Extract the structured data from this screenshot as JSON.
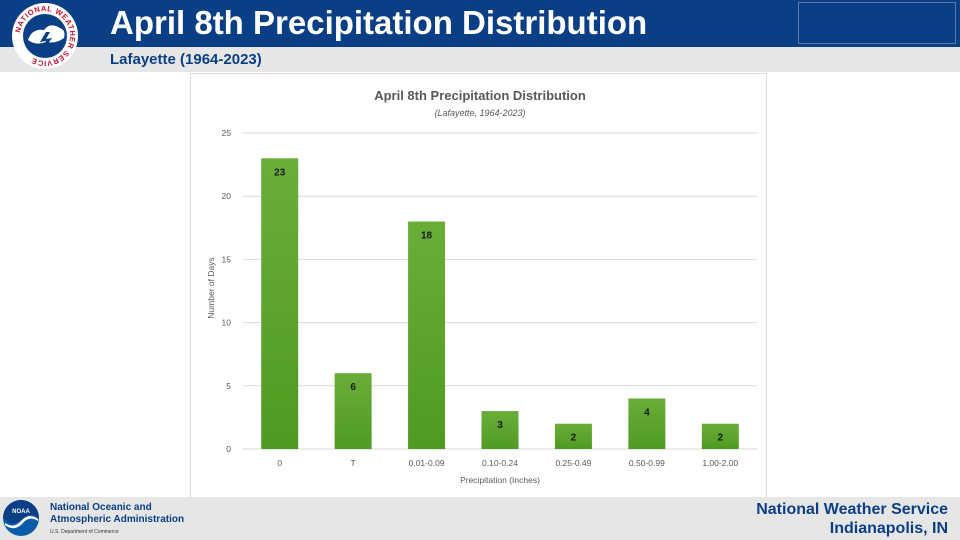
{
  "header": {
    "title": "April 8th Precipitation Distribution",
    "subtitle": "Lafayette (1964-2023)",
    "logo_text": "NATIONAL WEATHER SERVICE"
  },
  "chart_data": {
    "type": "bar",
    "title": "April 8th Precipitation Distribution",
    "subtitle": "(Lafayette, 1964-2023)",
    "xlabel": "Precipitation (Inches)",
    "ylabel": "Number of Days",
    "categories": [
      "0",
      "T",
      "0.01-0.09",
      "0.10-0.24",
      "0.25-0.49",
      "0.50-0.99",
      "1.00-2.00"
    ],
    "values": [
      23,
      6,
      18,
      3,
      2,
      4,
      2
    ],
    "ylim": [
      0,
      25
    ],
    "yticks": [
      0,
      5,
      10,
      15,
      20,
      25
    ],
    "grid": true,
    "data_labels": true,
    "bar_color": "#6aae3a",
    "bar_color_dark": "#4f9a22"
  },
  "footer": {
    "agency_line1": "National Oceanic and",
    "agency_line2": "Atmospheric Administration",
    "department": "U.S. Department of Commerce",
    "logo_text": "NOAA",
    "org_line1": "National Weather Service",
    "org_line2": "Indianapolis, IN"
  },
  "colors": {
    "brand_blue": "#0a3f86",
    "nws_red": "#c8102e",
    "gridline": "#d9d9d9",
    "axis_text": "#595959"
  }
}
